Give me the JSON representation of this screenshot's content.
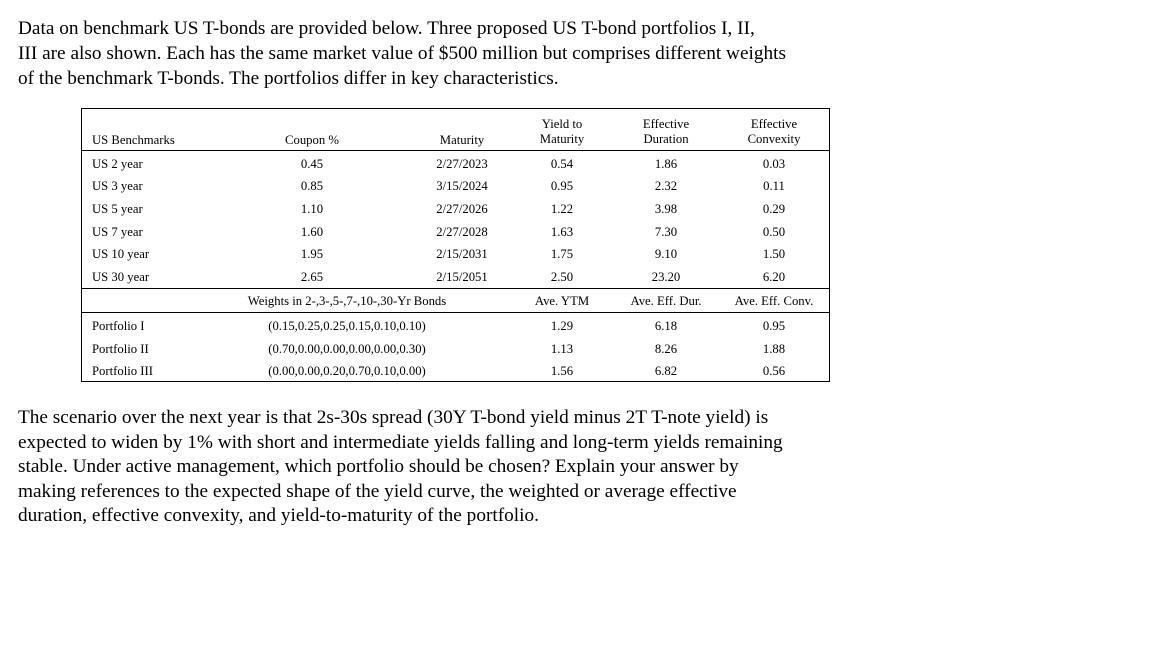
{
  "intro_lines": [
    "Data on benchmark US T-bonds are provided below. Three proposed US T-bond portfolios I, II,",
    "III are also shown. Each has the same market value of $500 million but comprises different weights",
    "of the benchmark T-bonds. The portfolios differ in key characteristics."
  ],
  "table": {
    "headers": {
      "benchmarks": "US Benchmarks",
      "coupon": "Coupon %",
      "maturity": "Maturity",
      "ytm_line1": "Yield to",
      "ytm_line2": "Maturity",
      "dur_line1": "Effective",
      "dur_line2": "Duration",
      "conv_line1": "Effective",
      "conv_line2": "Convexity"
    },
    "bonds": [
      {
        "name": "US 2 year",
        "coupon": "0.45",
        "maturity": "2/27/2023",
        "ytm": "0.54",
        "duration": "1.86",
        "convexity": "0.03"
      },
      {
        "name": "US 3 year",
        "coupon": "0.85",
        "maturity": "3/15/2024",
        "ytm": "0.95",
        "duration": "2.32",
        "convexity": "0.11"
      },
      {
        "name": "US 5 year",
        "coupon": "1.10",
        "maturity": "2/27/2026",
        "ytm": "1.22",
        "duration": "3.98",
        "convexity": "0.29"
      },
      {
        "name": "US 7 year",
        "coupon": "1.60",
        "maturity": "2/27/2028",
        "ytm": "1.63",
        "duration": "7.30",
        "convexity": "0.50"
      },
      {
        "name": "US 10 year",
        "coupon": "1.95",
        "maturity": "2/15/2031",
        "ytm": "1.75",
        "duration": "9.10",
        "convexity": "1.50"
      },
      {
        "name": "US 30 year",
        "coupon": "2.65",
        "maturity": "2/15/2051",
        "ytm": "2.50",
        "duration": "23.20",
        "convexity": "6.20"
      }
    ],
    "portfolio_headers": {
      "weights": "Weights in 2-,3-,5-,7-,10-,30-Yr Bonds",
      "ytm": "Ave. YTM",
      "duration": "Ave. Eff. Dur.",
      "convexity": "Ave. Eff. Conv."
    },
    "portfolios": [
      {
        "name": "Portfolio I",
        "weights": "(0.15,0.25,0.25,0.15,0.10,0.10)",
        "ytm": "1.29",
        "duration": "6.18",
        "convexity": "0.95"
      },
      {
        "name": "Portfolio II",
        "weights": "(0.70,0.00,0.00,0.00,0.00,0.30)",
        "ytm": "1.13",
        "duration": "8.26",
        "convexity": "1.88"
      },
      {
        "name": "Portfolio III",
        "weights": "(0.00,0.00,0.20,0.70,0.10,0.00)",
        "ytm": "1.56",
        "duration": "6.82",
        "convexity": "0.56"
      }
    ]
  },
  "question_lines": [
    "The scenario over the next year is that 2s-30s spread (30Y T-bond yield minus 2T T-note yield) is",
    "expected to widen by 1% with short and intermediate yields falling and long-term yields remaining",
    "stable. Under active management, which portfolio should be chosen? Explain your answer by",
    "making references to the expected shape of the yield curve, the weighted or average effective",
    "duration, effective convexity, and yield-to-maturity of the portfolio."
  ]
}
